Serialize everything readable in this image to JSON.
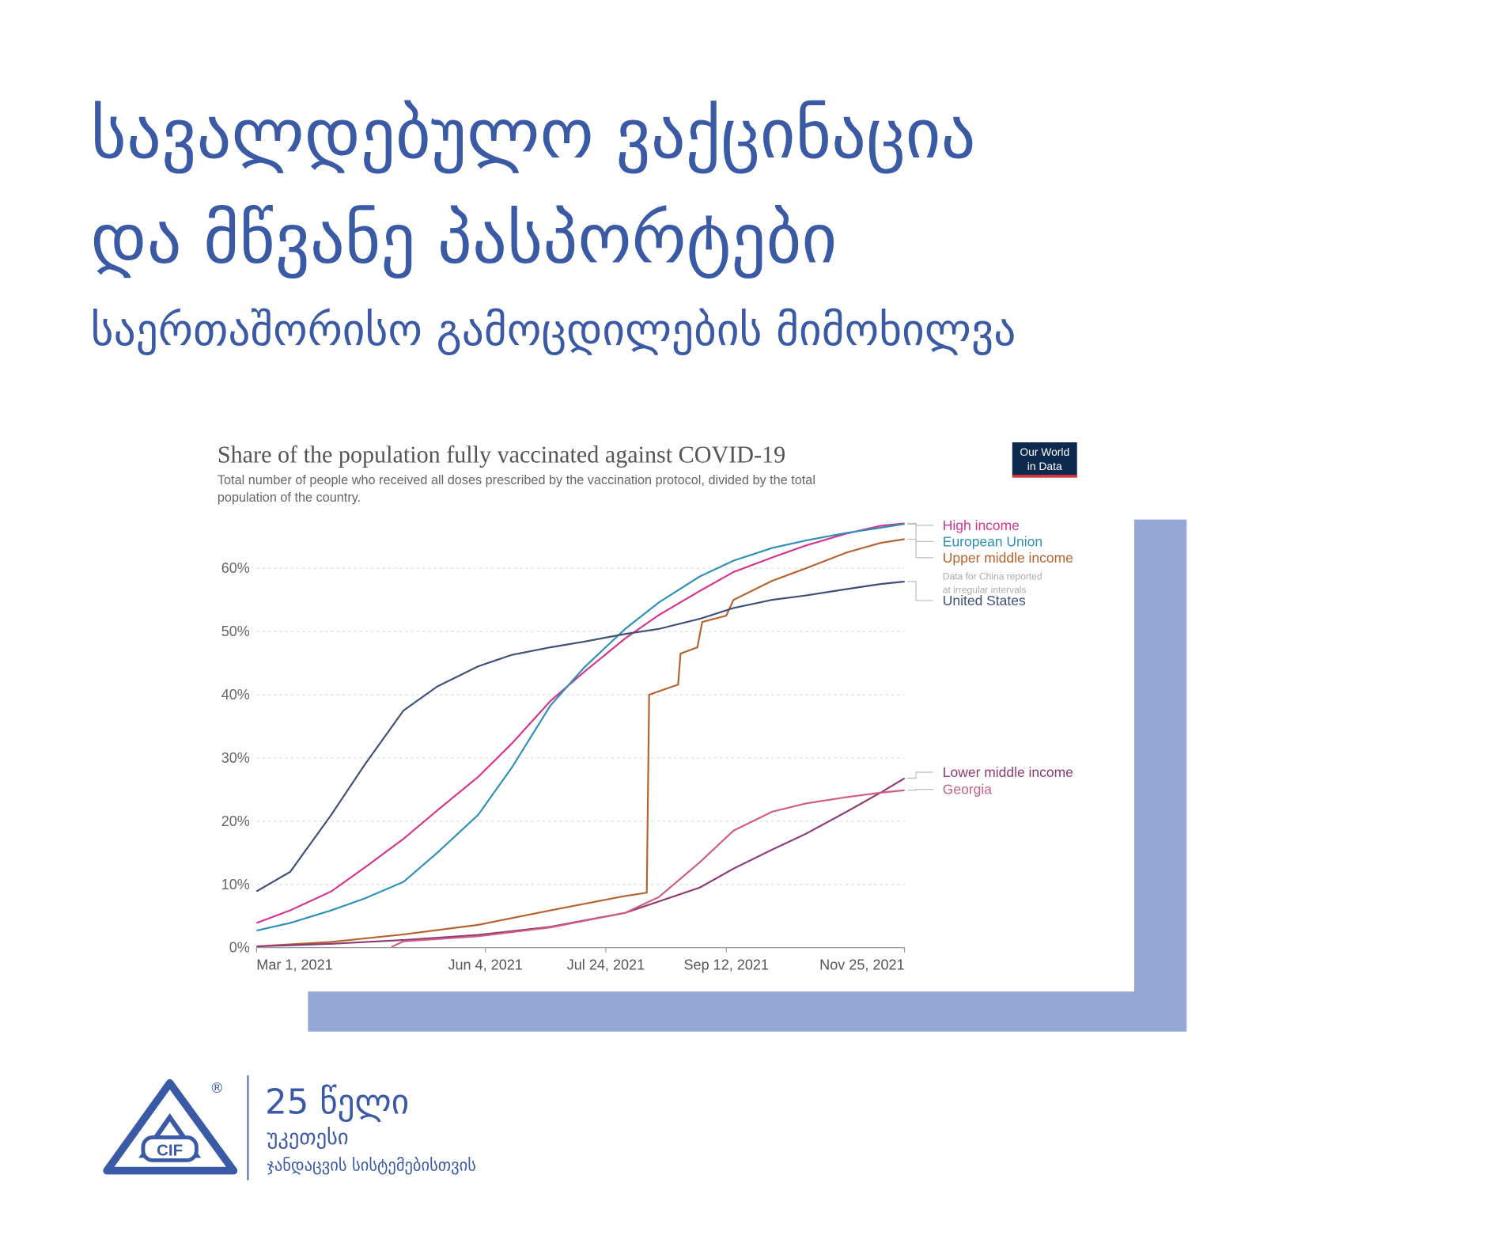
{
  "header": {
    "title_lines": [
      "სავალდებულო ვაქცინაცია",
      "და მწვანე პასპორტები"
    ],
    "subtitle": "საერთაშორისო გამოცდილების მიმოხილვა"
  },
  "chart_data": {
    "type": "line",
    "title": "Share of the population fully vaccinated against COVID-19",
    "subtitle": [
      "Total number of people who received all doses prescribed by the vaccination protocol, divided by the total",
      "population of the country."
    ],
    "source": [
      "Our World",
      "in Data"
    ],
    "annotation": [
      "Data for China reported",
      "at irregular intervals"
    ],
    "xlim": [
      "2021-03-01",
      "2021-11-25"
    ],
    "xticks": [
      {
        "value": "2021-03-01",
        "label": "Mar 1, 2021"
      },
      {
        "value": "2021-06-04",
        "label": "Jun 4, 2021"
      },
      {
        "value": "2021-07-24",
        "label": "Jul 24, 2021"
      },
      {
        "value": "2021-09-12",
        "label": "Sep 12, 2021"
      },
      {
        "value": "2021-11-25",
        "label": "Nov 25, 2021"
      }
    ],
    "ylim": [
      0,
      68
    ],
    "yticks": [
      {
        "value": 0,
        "label": "0%"
      },
      {
        "value": 10,
        "label": "10%"
      },
      {
        "value": 20,
        "label": "20%"
      },
      {
        "value": 30,
        "label": "30%"
      },
      {
        "value": 40,
        "label": "40%"
      },
      {
        "value": 50,
        "label": "50%"
      },
      {
        "value": 60,
        "label": "60%"
      }
    ],
    "grid": true,
    "series": [
      {
        "name": "High income",
        "color": "#d6338c",
        "x": [
          "2021-03-01",
          "2021-03-15",
          "2021-04-01",
          "2021-04-15",
          "2021-05-01",
          "2021-05-15",
          "2021-06-01",
          "2021-06-15",
          "2021-07-01",
          "2021-07-15",
          "2021-08-01",
          "2021-08-15",
          "2021-09-01",
          "2021-09-15",
          "2021-10-01",
          "2021-10-15",
          "2021-11-01",
          "2021-11-15",
          "2021-11-25"
        ],
        "values": [
          3.9,
          5.9,
          8.9,
          12.7,
          17.2,
          21.7,
          27,
          32.3,
          39,
          43.6,
          48.9,
          52.6,
          56.4,
          59.4,
          61.7,
          63.6,
          65.5,
          66.7,
          67.1
        ]
      },
      {
        "name": "European Union",
        "color": "#2e8fb8",
        "x": [
          "2021-03-01",
          "2021-03-15",
          "2021-04-01",
          "2021-04-15",
          "2021-05-01",
          "2021-05-15",
          "2021-06-01",
          "2021-06-15",
          "2021-07-01",
          "2021-07-15",
          "2021-08-01",
          "2021-08-15",
          "2021-09-01",
          "2021-09-15",
          "2021-10-01",
          "2021-10-15",
          "2021-11-01",
          "2021-11-15",
          "2021-11-25"
        ],
        "values": [
          2.7,
          3.9,
          5.9,
          7.8,
          10.4,
          15,
          21,
          28.5,
          38.3,
          44.3,
          50.4,
          54.6,
          58.7,
          61.2,
          63.2,
          64.4,
          65.6,
          66.4,
          67
        ]
      },
      {
        "name": "Upper middle income",
        "color": "#b5622c",
        "x": [
          "2021-03-01",
          "2021-04-01",
          "2021-05-01",
          "2021-06-01",
          "2021-07-01",
          "2021-07-31",
          "2021-08-10",
          "2021-08-11",
          "2021-08-20",
          "2021-08-23",
          "2021-08-24",
          "2021-08-31",
          "2021-09-02",
          "2021-09-12",
          "2021-09-15",
          "2021-10-01",
          "2021-10-15",
          "2021-11-01",
          "2021-11-15",
          "2021-11-25"
        ],
        "values": [
          0.2,
          0.9,
          2.1,
          3.6,
          5.9,
          8.1,
          8.7,
          40,
          41.2,
          41.6,
          46.5,
          47.5,
          51.5,
          52.5,
          55,
          58,
          60,
          62.5,
          64,
          64.6
        ]
      },
      {
        "name": "United States",
        "color": "#3e5078",
        "x": [
          "2021-03-01",
          "2021-03-15",
          "2021-04-01",
          "2021-04-15",
          "2021-05-01",
          "2021-05-15",
          "2021-06-01",
          "2021-06-15",
          "2021-07-01",
          "2021-07-15",
          "2021-08-01",
          "2021-08-15",
          "2021-09-01",
          "2021-09-15",
          "2021-10-01",
          "2021-10-15",
          "2021-11-01",
          "2021-11-15",
          "2021-11-25"
        ],
        "values": [
          8.9,
          12,
          21,
          29,
          37.5,
          41.3,
          44.5,
          46.3,
          47.5,
          48.4,
          49.6,
          50.4,
          52,
          53.7,
          55,
          55.7,
          56.7,
          57.5,
          57.9
        ]
      },
      {
        "name": "Lower middle income",
        "color": "#8e3a73",
        "x": [
          "2021-03-01",
          "2021-04-01",
          "2021-05-01",
          "2021-06-01",
          "2021-07-01",
          "2021-08-01",
          "2021-09-01",
          "2021-09-15",
          "2021-10-01",
          "2021-10-15",
          "2021-11-01",
          "2021-11-15",
          "2021-11-25"
        ],
        "values": [
          0.2,
          0.6,
          1.2,
          2,
          3.3,
          5.5,
          9.5,
          12.5,
          15.5,
          18,
          21.5,
          24.5,
          26.8
        ]
      },
      {
        "name": "Georgia",
        "color": "#cf5c86",
        "x": [
          "2021-04-26",
          "2021-05-01",
          "2021-06-01",
          "2021-07-01",
          "2021-08-01",
          "2021-08-15",
          "2021-09-01",
          "2021-09-15",
          "2021-10-01",
          "2021-10-15",
          "2021-11-01",
          "2021-11-15",
          "2021-11-25"
        ],
        "values": [
          0.1,
          1,
          1.8,
          3.2,
          5.5,
          8,
          13.5,
          18.5,
          21.5,
          22.8,
          23.8,
          24.5,
          24.9
        ]
      }
    ]
  },
  "logo": {
    "mark": "CIF",
    "registered": "®",
    "years": "25 წელი",
    "line1": "უკეთესი",
    "line2": "ჯანდაცვის სისტემებისთვის"
  }
}
